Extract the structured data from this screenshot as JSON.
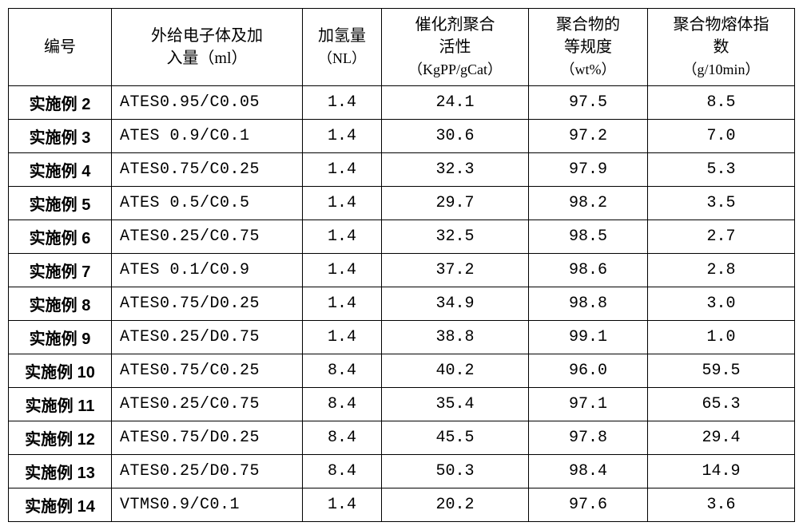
{
  "table": {
    "headers": {
      "id": "编号",
      "donor_l1": "外给电子体及加",
      "donor_l2": "入量（ml）",
      "h2_l1": "加氢量",
      "h2_l2": "（NL）",
      "activity_l1": "催化剂聚合",
      "activity_l2": "活性",
      "activity_l3": "（KgPP/gCat）",
      "iso_l1": "聚合物的",
      "iso_l2": "等规度",
      "iso_l3": "（wt%）",
      "mfi_l1": "聚合物熔体指",
      "mfi_l2": "数",
      "mfi_l3": "（g/10min）"
    },
    "rows": [
      {
        "id": "实施例 2",
        "donor": "ATES0.95/C0.05",
        "h2": "1.4",
        "activity": "24.1",
        "iso": "97.5",
        "mfi": "8.5"
      },
      {
        "id": "实施例 3",
        "donor": "ATES 0.9/C0.1",
        "h2": "1.4",
        "activity": "30.6",
        "iso": "97.2",
        "mfi": "7.0"
      },
      {
        "id": "实施例 4",
        "donor": "ATES0.75/C0.25",
        "h2": "1.4",
        "activity": "32.3",
        "iso": "97.9",
        "mfi": "5.3"
      },
      {
        "id": "实施例 5",
        "donor": "ATES 0.5/C0.5",
        "h2": "1.4",
        "activity": "29.7",
        "iso": "98.2",
        "mfi": "3.5"
      },
      {
        "id": "实施例 6",
        "donor": "ATES0.25/C0.75",
        "h2": "1.4",
        "activity": "32.5",
        "iso": "98.5",
        "mfi": "2.7"
      },
      {
        "id": "实施例 7",
        "donor": "ATES 0.1/C0.9",
        "h2": "1.4",
        "activity": "37.2",
        "iso": "98.6",
        "mfi": "2.8"
      },
      {
        "id": "实施例 8",
        "donor": "ATES0.75/D0.25",
        "h2": "1.4",
        "activity": "34.9",
        "iso": "98.8",
        "mfi": "3.0"
      },
      {
        "id": "实施例 9",
        "donor": "ATES0.25/D0.75",
        "h2": "1.4",
        "activity": "38.8",
        "iso": "99.1",
        "mfi": "1.0"
      },
      {
        "id": "实施例 10",
        "donor": "ATES0.75/C0.25",
        "h2": "8.4",
        "activity": "40.2",
        "iso": "96.0",
        "mfi": "59.5"
      },
      {
        "id": "实施例 11",
        "donor": "ATES0.25/C0.75",
        "h2": "8.4",
        "activity": "35.4",
        "iso": "97.1",
        "mfi": "65.3"
      },
      {
        "id": "实施例 12",
        "donor": "ATES0.75/D0.25",
        "h2": "8.4",
        "activity": "45.5",
        "iso": "97.8",
        "mfi": "29.4"
      },
      {
        "id": "实施例 13",
        "donor": "ATES0.25/D0.75",
        "h2": "8.4",
        "activity": "50.3",
        "iso": "98.4",
        "mfi": "14.9"
      },
      {
        "id": "实施例 14",
        "donor": "VTMS0.9/C0.1",
        "h2": "1.4",
        "activity": "20.2",
        "iso": "97.6",
        "mfi": "3.6"
      }
    ]
  }
}
